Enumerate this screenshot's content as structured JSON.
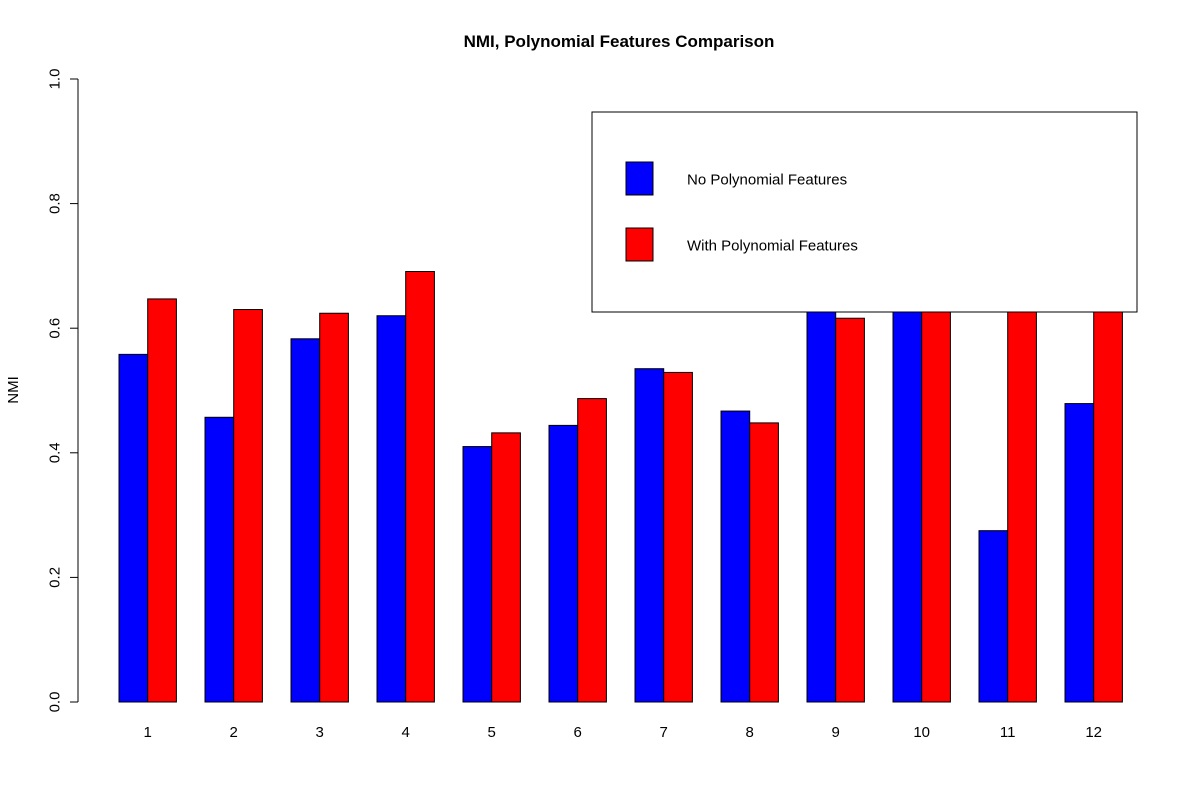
{
  "chart_data": {
    "type": "bar",
    "title": "NMI, Polynomial Features Comparison",
    "xlabel": "",
    "ylabel": "NMI",
    "ylim": [
      0,
      1
    ],
    "yticks": [
      "0.0",
      "0.2",
      "0.4",
      "0.6",
      "0.8",
      "1.0"
    ],
    "categories": [
      "1",
      "2",
      "3",
      "4",
      "5",
      "6",
      "7",
      "8",
      "9",
      "10",
      "11",
      "12"
    ],
    "series": [
      {
        "name": "No Polynomial Features",
        "color": "#0000ff",
        "values": [
          0.558,
          0.457,
          0.583,
          0.62,
          0.41,
          0.444,
          0.535,
          0.467,
          0.66,
          0.66,
          0.275,
          0.479
        ]
      },
      {
        "name": "With Polynomial Features",
        "color": "#ff0000",
        "values": [
          0.647,
          0.63,
          0.624,
          0.691,
          0.432,
          0.487,
          0.529,
          0.448,
          0.616,
          0.66,
          0.66,
          0.66
        ]
      }
    ],
    "legend": {
      "placement": "top-right"
    },
    "grid": false
  }
}
